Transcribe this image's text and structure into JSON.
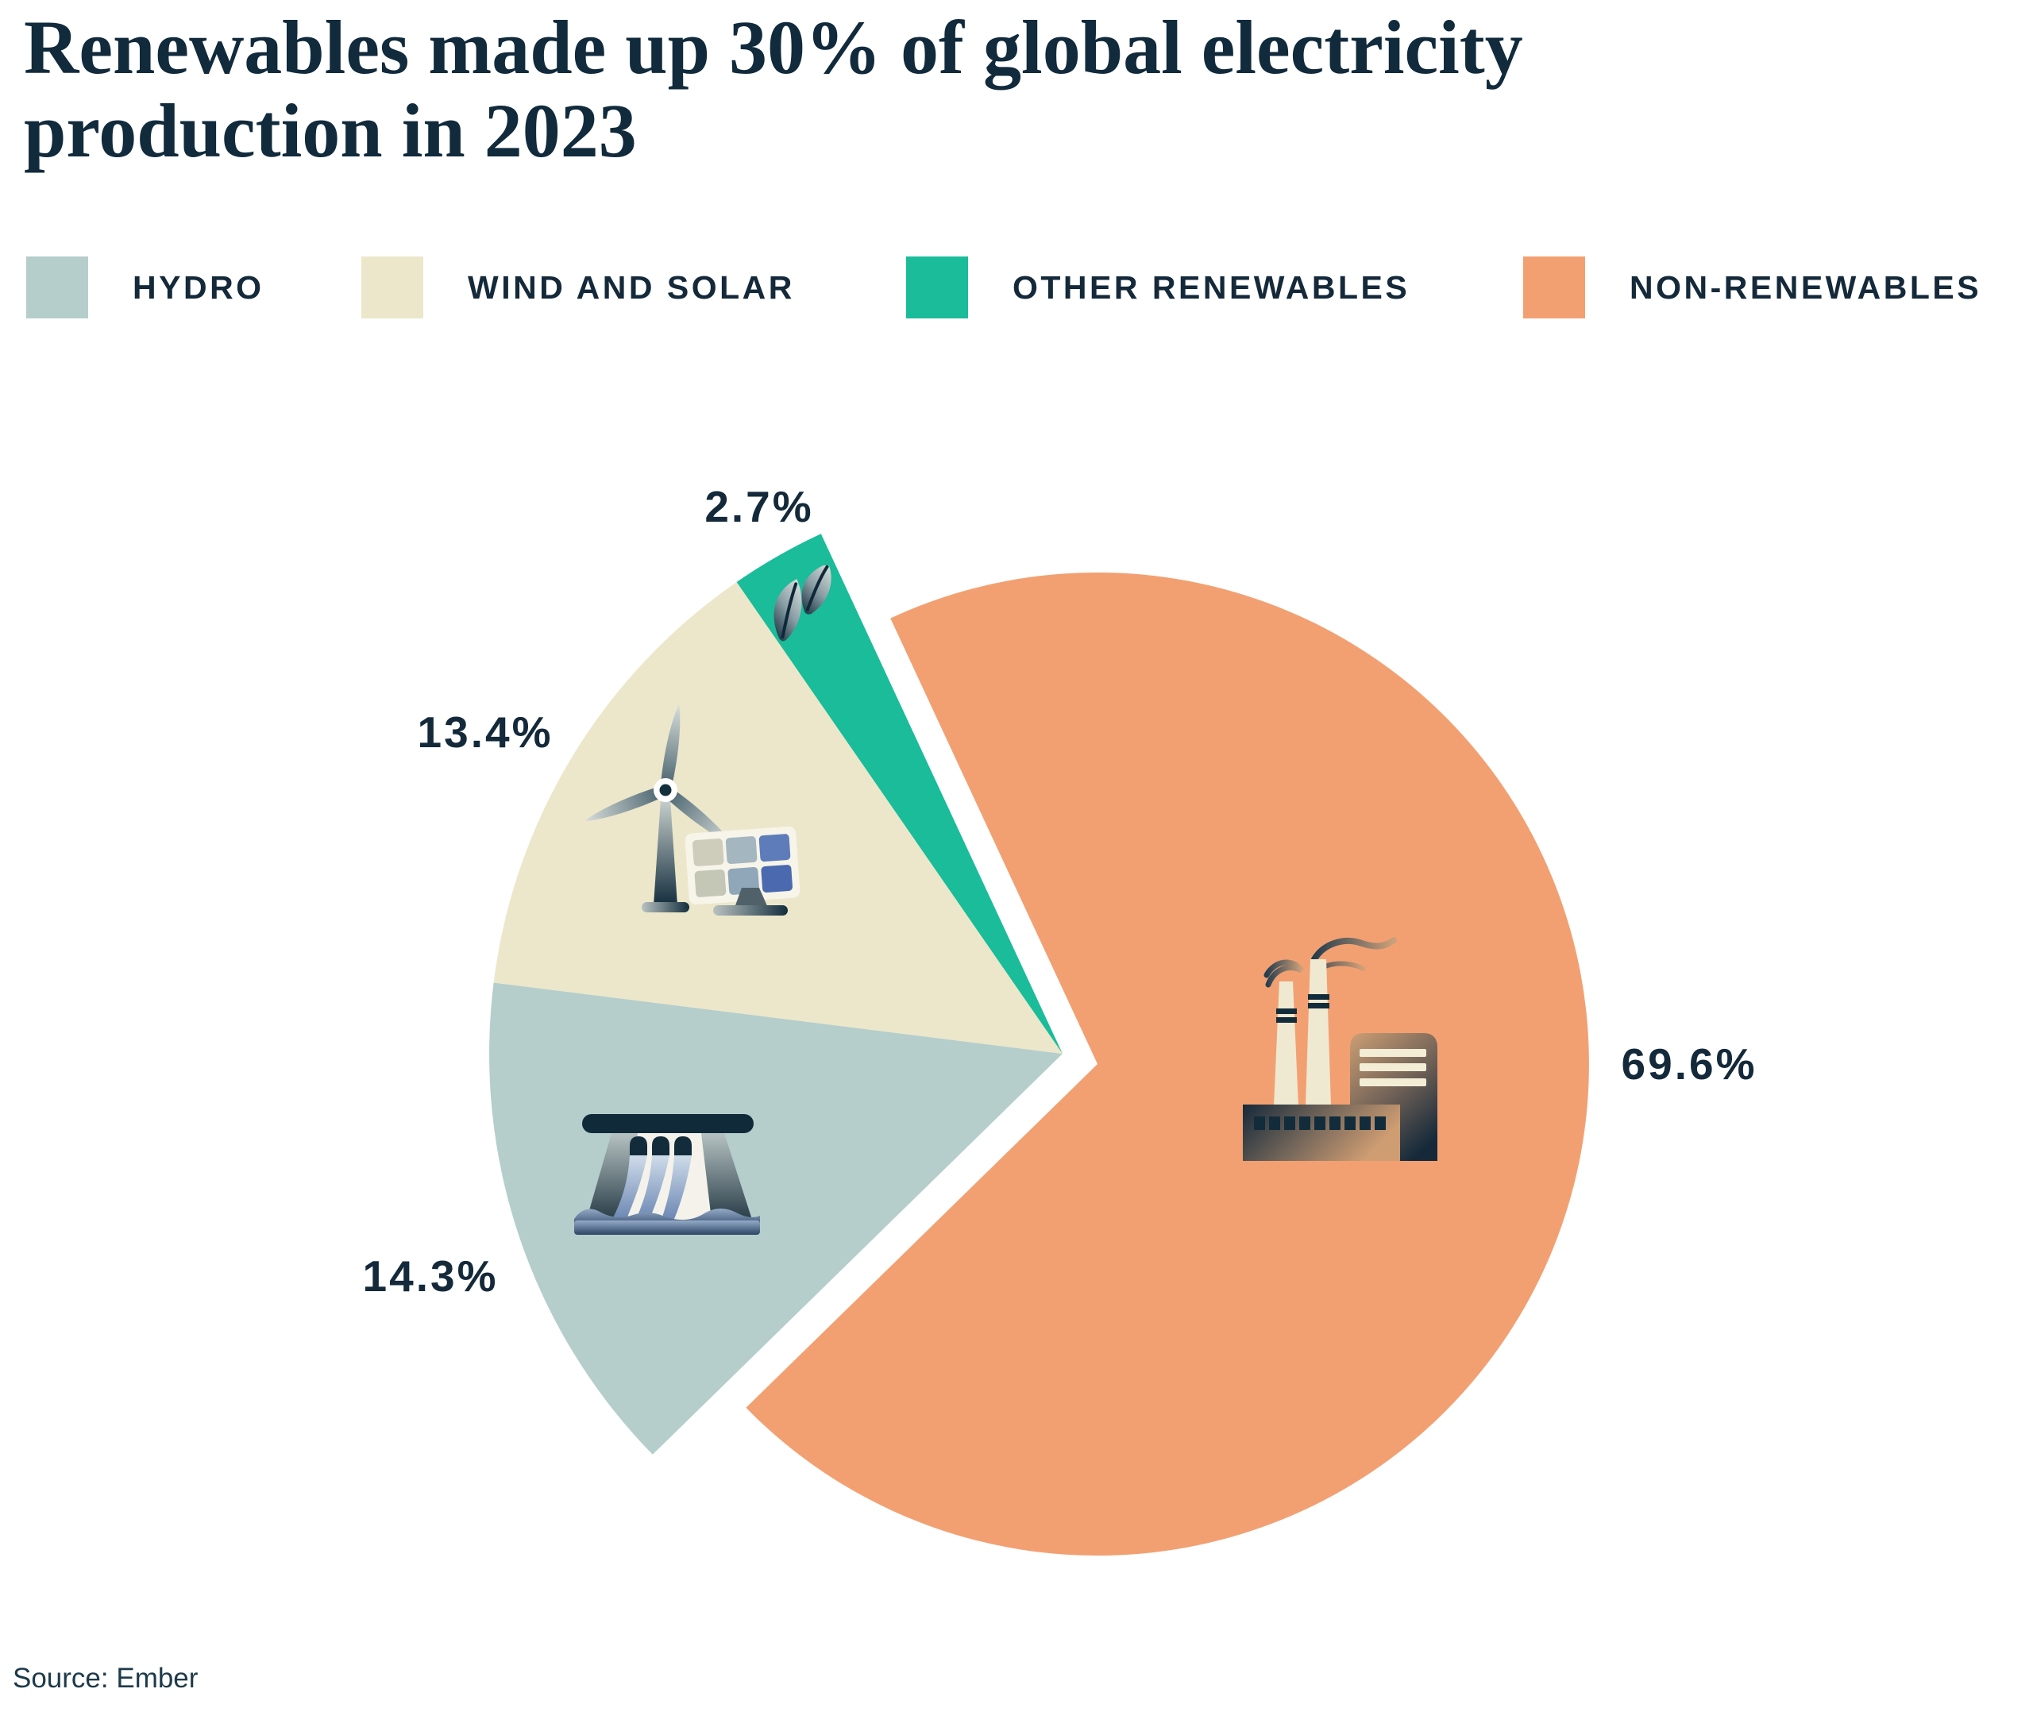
{
  "title": {
    "full": "Renewables made up 30% of global electricity production in 2023",
    "lines": [
      "Renewables made up 30% of global electricity",
      "production in 2023"
    ]
  },
  "legend": {
    "items": [
      {
        "label": "HYDRO",
        "color": "#b5cecc"
      },
      {
        "label": "WIND AND SOLAR",
        "color": "#ece7ca"
      },
      {
        "label": "OTHER RENEWABLES",
        "color": "#1abc9a"
      },
      {
        "label": "NON-RENEWABLES",
        "color": "#f2a072"
      }
    ]
  },
  "source": {
    "text": "Source: Ember"
  },
  "colors": {
    "text_navy": "#14293a",
    "title_navy": "#112a3c",
    "hydro": "#b5cecc",
    "wind_and_solar": "#ece7ca",
    "other_renewables": "#1abc9a",
    "non_renewables": "#f2a072"
  },
  "icons": [
    "factory-icon",
    "dam-icon",
    "wind-turbine-icon",
    "solar-panel-icon",
    "leaf-icon"
  ],
  "chart_data": {
    "type": "pie",
    "title": "Renewables made up 30% of global electricity production in 2023",
    "unit": "%",
    "slices": [
      {
        "label": "NON-RENEWABLES",
        "value": 69.6,
        "color": "#f2a072",
        "icon": "factory-icon"
      },
      {
        "label": "HYDRO",
        "value": 14.3,
        "color": "#b5cecc",
        "icon": "dam-icon"
      },
      {
        "label": "WIND AND SOLAR",
        "value": 13.4,
        "color": "#ece7ca",
        "icon": "wind-turbine-solar-panel-icon"
      },
      {
        "label": "OTHER RENEWABLES",
        "value": 2.7,
        "color": "#1abc9a",
        "icon": "leaf-icon"
      }
    ],
    "layout_hints": {
      "legend_position": "top",
      "labels": "outside",
      "exploded_group": [
        "HYDRO",
        "WIND AND SOLAR",
        "OTHER RENEWABLES"
      ],
      "start_angle_deg_from_north": 335,
      "direction": "clockwise"
    }
  }
}
